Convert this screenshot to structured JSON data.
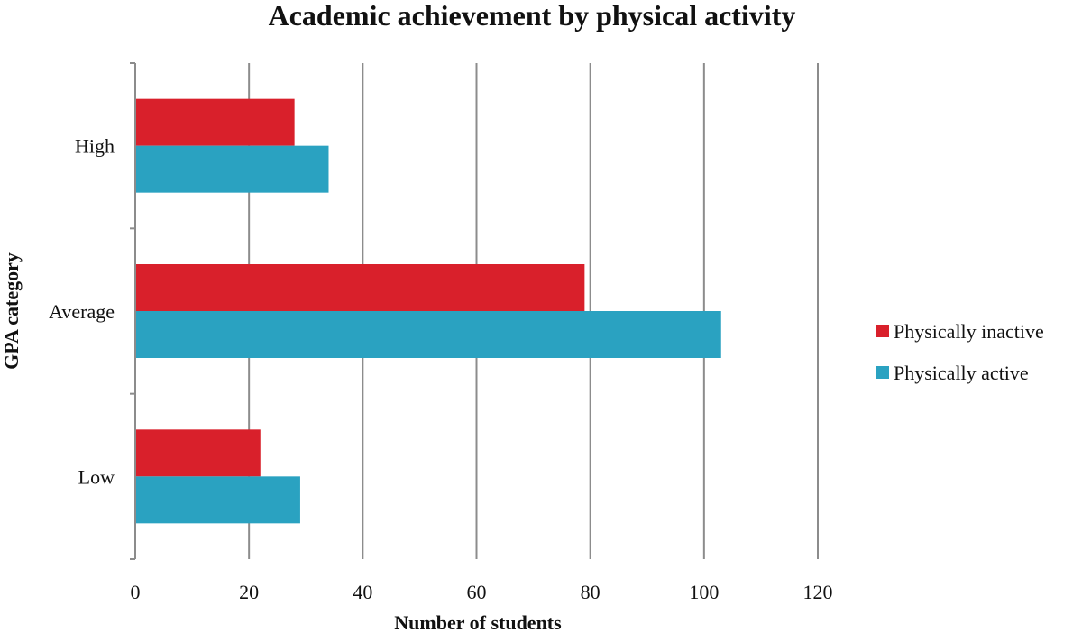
{
  "chart_data": {
    "type": "bar",
    "orientation": "horizontal",
    "title": "Academic achievement by physical activity",
    "xlabel": "Number of students",
    "ylabel": "GPA category",
    "categories": [
      "Low",
      "Average",
      "High"
    ],
    "series": [
      {
        "name": "Physically inactive",
        "values": [
          22,
          79,
          28
        ],
        "color": "#d9202b"
      },
      {
        "name": "Physically active",
        "values": [
          29,
          103,
          34
        ],
        "color": "#2aa2c1"
      }
    ],
    "xlim": [
      0,
      120
    ],
    "x_ticks": [
      0,
      20,
      40,
      60,
      80,
      100,
      120
    ],
    "grid": "vertical",
    "legend_position": "right"
  }
}
